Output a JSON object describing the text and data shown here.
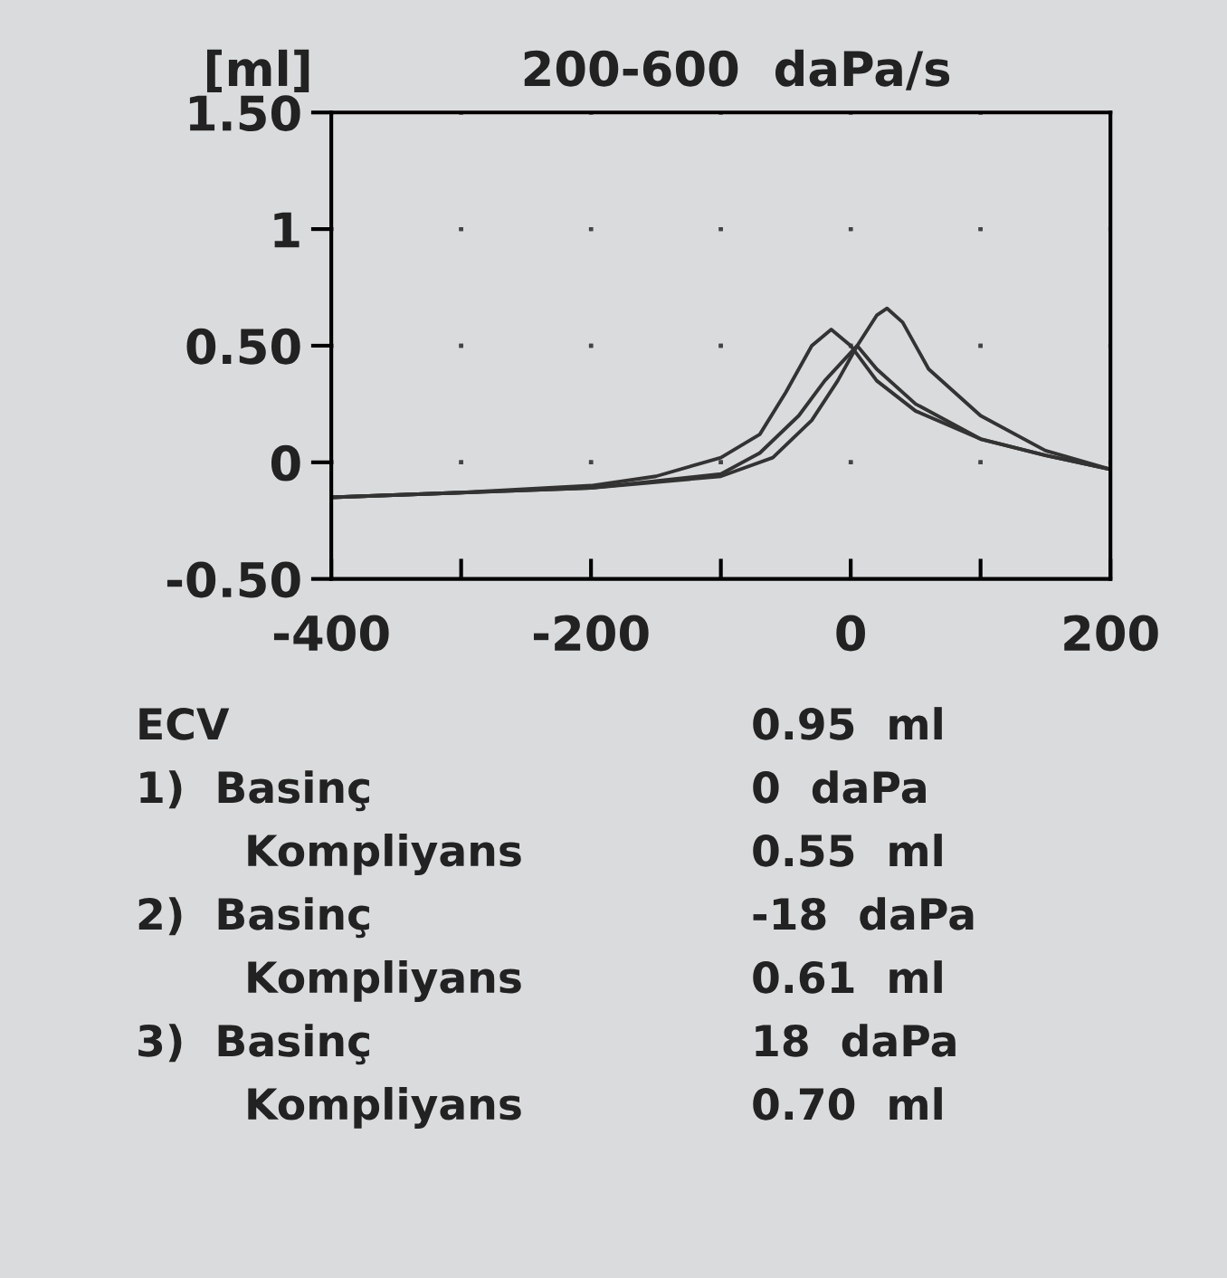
{
  "chart_data": {
    "type": "line",
    "title": "200-600  daPa/s",
    "ylabel": "[ml]",
    "xlim": [
      -400,
      200
    ],
    "ylim": [
      -0.5,
      1.5
    ],
    "xticks": [
      -400,
      {
        "value": -300,
        "label": null
      },
      -200,
      {
        "value": -100,
        "label": null
      },
      0,
      {
        "value": 100,
        "label": null
      },
      200
    ],
    "yticks": [
      {
        "value": -0.5,
        "label": "-0.50"
      },
      0,
      {
        "value": 0.5,
        "label": "0.50"
      },
      1,
      {
        "value": 1.5,
        "label": "1.50"
      }
    ],
    "grid": true,
    "marker": "none",
    "line_style": "solid",
    "series": [
      {
        "color": "#333333",
        "x": [
          -400,
          -300,
          -200,
          -150,
          -100,
          -70,
          -50,
          -30,
          -15,
          0,
          20,
          50,
          100,
          150,
          200
        ],
        "values": [
          -0.15,
          -0.13,
          -0.1,
          -0.06,
          0.02,
          0.12,
          0.3,
          0.5,
          0.57,
          0.5,
          0.35,
          0.22,
          0.1,
          0.03,
          -0.03
        ]
      },
      {
        "color": "#333333",
        "x": [
          -400,
          -300,
          -200,
          -100,
          -70,
          -40,
          -20,
          0,
          5,
          20,
          50,
          100,
          150,
          200
        ],
        "values": [
          -0.15,
          -0.13,
          -0.11,
          -0.05,
          0.04,
          0.2,
          0.35,
          0.47,
          0.5,
          0.4,
          0.25,
          0.1,
          0.03,
          -0.03
        ]
      },
      {
        "color": "#333333",
        "x": [
          -400,
          -200,
          -100,
          -60,
          -30,
          -10,
          5,
          20,
          28,
          40,
          60,
          100,
          150,
          200
        ],
        "values": [
          -0.15,
          -0.11,
          -0.06,
          0.02,
          0.18,
          0.35,
          0.5,
          0.63,
          0.66,
          0.6,
          0.4,
          0.2,
          0.05,
          -0.03
        ]
      }
    ],
    "annotations": [
      "ECV",
      "0.95  ml",
      "1)  Basinç",
      "0  daPa",
      "Kompliyans",
      "0.55  ml",
      "2)  Basinç",
      "-18  daPa",
      "Kompliyans",
      "0.61  ml",
      "3)  Basinç",
      "18  daPa",
      "Kompliyans",
      "0.70  ml"
    ]
  }
}
